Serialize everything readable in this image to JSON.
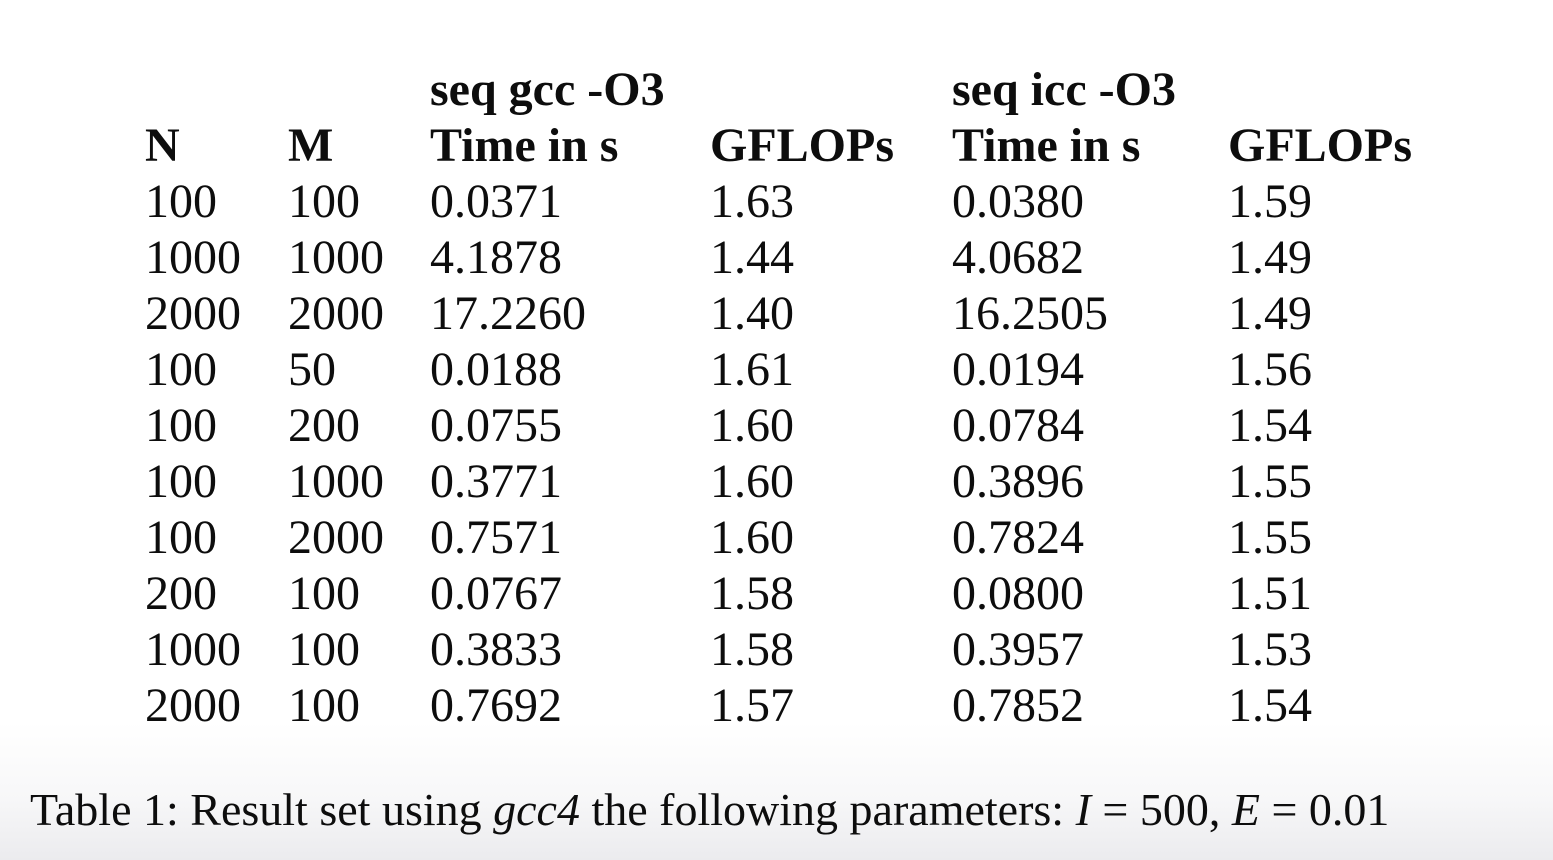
{
  "document": {
    "background_top": "#ffffff",
    "background_bottom": "#ebebee",
    "text_color": "#0d0d0d"
  },
  "table": {
    "group_headers": [
      {
        "label": "seq gcc -O3",
        "span": 2
      },
      {
        "label": "seq icc -O3",
        "span": 2
      }
    ],
    "columns": [
      "N",
      "M",
      "Time in s",
      "GFLOPs",
      "Time in s",
      "GFLOPs"
    ],
    "rows": [
      [
        "100",
        "100",
        "0.0371",
        "1.63",
        "0.0380",
        "1.59"
      ],
      [
        "1000",
        "1000",
        "4.1878",
        "1.44",
        "4.0682",
        "1.49"
      ],
      [
        "2000",
        "2000",
        "17.2260",
        "1.40",
        "16.2505",
        "1.49"
      ],
      [
        "100",
        "50",
        "0.0188",
        "1.61",
        "0.0194",
        "1.56"
      ],
      [
        "100",
        "200",
        "0.0755",
        "1.60",
        "0.0784",
        "1.54"
      ],
      [
        "100",
        "1000",
        "0.3771",
        "1.60",
        "0.3896",
        "1.55"
      ],
      [
        "100",
        "2000",
        "0.7571",
        "1.60",
        "0.7824",
        "1.55"
      ],
      [
        "200",
        "100",
        "0.0767",
        "1.58",
        "0.0800",
        "1.51"
      ],
      [
        "1000",
        "100",
        "0.3833",
        "1.58",
        "0.3957",
        "1.53"
      ],
      [
        "2000",
        "100",
        "0.7692",
        "1.57",
        "0.7852",
        "1.54"
      ]
    ]
  },
  "caption": {
    "segments": [
      {
        "text": "Table 1: Result set using ",
        "style": "normal"
      },
      {
        "text": "gcc4",
        "style": "italic"
      },
      {
        "text": " the following parameters: ",
        "style": "normal"
      },
      {
        "text": "I",
        "style": "italic"
      },
      {
        "text": " = 500, ",
        "style": "normal"
      },
      {
        "text": "E",
        "style": "italic"
      },
      {
        "text": " = 0.01",
        "style": "normal"
      }
    ]
  }
}
